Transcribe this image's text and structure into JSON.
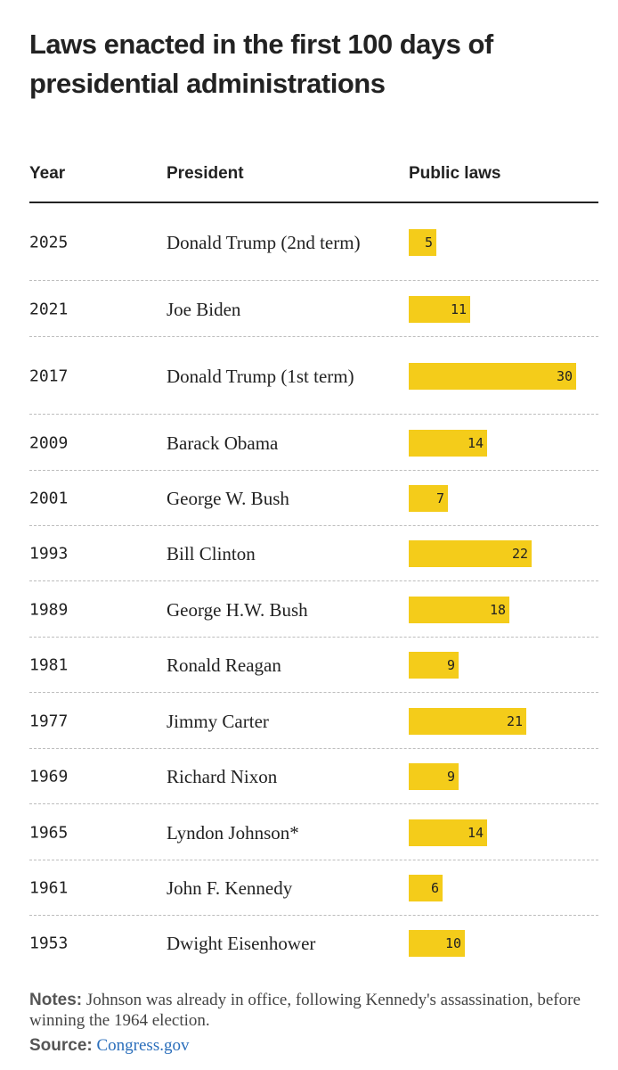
{
  "title": "Laws enacted in the first 100 days of presidential administrations",
  "table": {
    "headers": {
      "year": "Year",
      "president": "President",
      "laws": "Public laws"
    }
  },
  "chart_data": {
    "type": "bar",
    "orientation": "horizontal",
    "value_column": "Public laws",
    "bar_color": "#f4cc1a",
    "rows": [
      {
        "year": "2025",
        "president": "Donald Trump (2nd term)",
        "value": 5
      },
      {
        "year": "2021",
        "president": "Joe Biden",
        "value": 11
      },
      {
        "year": "2017",
        "president": "Donald Trump (1st term)",
        "value": 30
      },
      {
        "year": "2009",
        "president": "Barack Obama",
        "value": 14
      },
      {
        "year": "2001",
        "president": "George W. Bush",
        "value": 7
      },
      {
        "year": "1993",
        "president": "Bill Clinton",
        "value": 22
      },
      {
        "year": "1989",
        "president": "George H.W. Bush",
        "value": 18
      },
      {
        "year": "1981",
        "president": "Ronald Reagan",
        "value": 9
      },
      {
        "year": "1977",
        "president": "Jimmy Carter",
        "value": 21
      },
      {
        "year": "1969",
        "president": "Richard Nixon",
        "value": 9
      },
      {
        "year": "1965",
        "president": "Lyndon Johnson*",
        "value": 14
      },
      {
        "year": "1961",
        "president": "John F. Kennedy",
        "value": 6
      },
      {
        "year": "1953",
        "president": "Dwight Eisenhower",
        "value": 10
      }
    ],
    "xlim": [
      0,
      30
    ]
  },
  "notes": {
    "label": "Notes:",
    "text": " Johnson was already in office, following Kennedy's assassination, before winning the 1964 election."
  },
  "source": {
    "label": "Source:",
    "link_text": "Congress.gov"
  }
}
